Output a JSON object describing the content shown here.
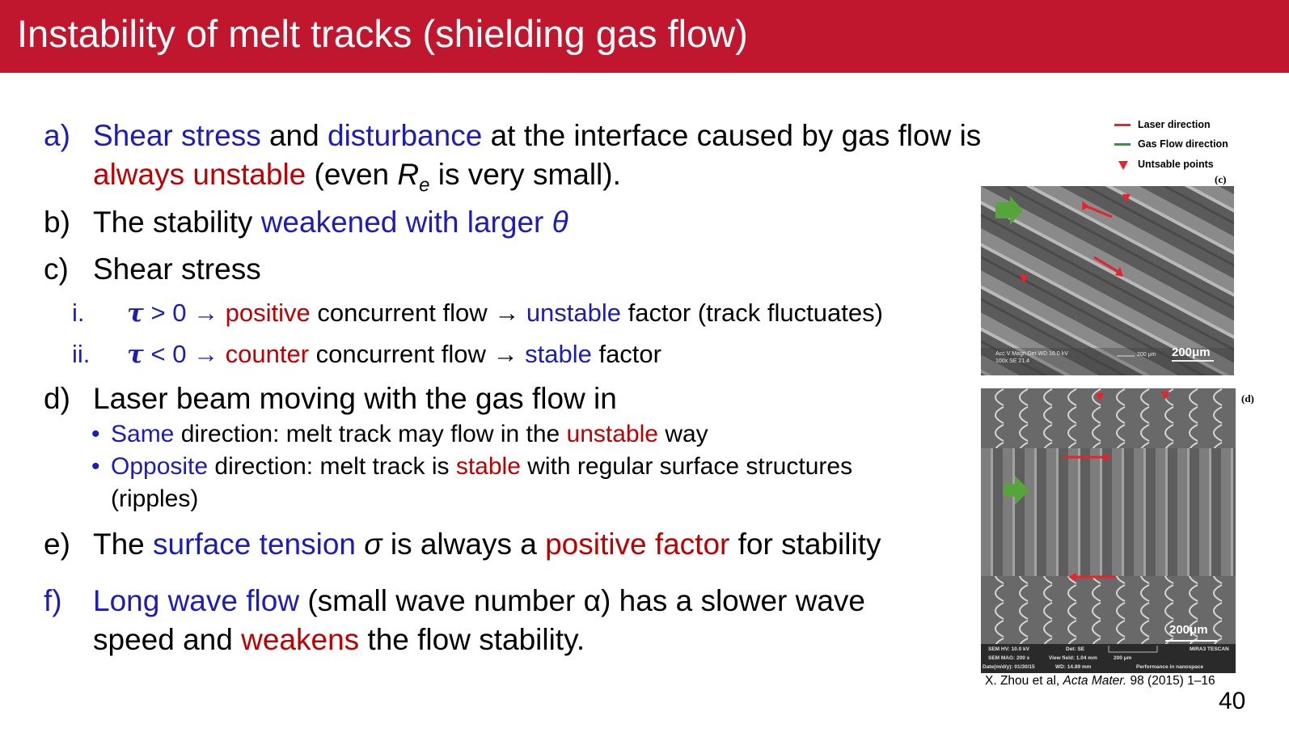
{
  "slide": {
    "title": "Instability of melt tracks (shielding gas flow)",
    "page_number": "40",
    "colors": {
      "title_bar": "#c0172f",
      "blue": "#1c1cb8",
      "red": "#c00000"
    }
  },
  "items": {
    "a": {
      "marker": "a)",
      "t1": "Shear stress",
      "t2": " and ",
      "t3": "disturbance",
      "t4": " at the interface caused by gas flow is",
      "t5": "always unstable",
      "t6": " (even ",
      "t7": "R",
      "t8": "e",
      "t9": " is very small)."
    },
    "b": {
      "marker": "b)",
      "t1": "The stability ",
      "t2": "weakened with larger ",
      "t3": "θ"
    },
    "c": {
      "marker": "c)",
      "t1": "Shear stress",
      "sub1": {
        "marker": "i.",
        "tau": "τ",
        "t1": " > 0 → ",
        "t2": "positive",
        "t3": " concurrent flow → ",
        "t4": "unstable",
        "t5": " factor (track fluctuates)"
      },
      "sub2": {
        "marker": "ii.",
        "tau": "τ",
        "t1": " < 0 → ",
        "t2": "counter",
        "t3": " concurrent flow → ",
        "t4": "stable",
        "t5": " factor"
      }
    },
    "d": {
      "marker": "d)",
      "t1": "Laser beam moving with the gas flow in",
      "b1": {
        "marker": "•",
        "t1": "Same",
        "t2": " direction: melt track may flow in the ",
        "t3": "unstable",
        "t4": " way"
      },
      "b2": {
        "marker": "•",
        "t1": "Opposite",
        "t2": " direction: melt track is ",
        "t3": "stable",
        "t4": " with regular surface structures",
        "t5": "(ripples)"
      }
    },
    "e": {
      "marker": "e)",
      "t1": "The ",
      "t2": "surface tension ",
      "t3": "σ",
      "t4": " is always a ",
      "t5": "positive factor",
      "t6": " for stability"
    },
    "f": {
      "marker": "f)",
      "t1": "Long wave flow",
      "t2": " (small wave number α) has a slower wave",
      "t3": "speed and ",
      "t4": "weakens",
      "t5": " the flow stability."
    }
  },
  "figure": {
    "legend": [
      {
        "label": "Laser direction",
        "color": "#e8232a"
      },
      {
        "label": "Gas Flow direction",
        "color": "#1ca33a"
      },
      {
        "label": "Untsable points",
        "color": "#e8232a",
        "marker": "triangle-down"
      }
    ],
    "panel_c": {
      "label": "(c)",
      "scale": "200μm",
      "meta": "Acc.V Magn Det WD 16.0 kV 100x SE 21.4",
      "meta_scale": "200 μm"
    },
    "panel_d": {
      "label": "(d)",
      "scale": "200μm",
      "meta": {
        "c1a": "SEM HV: 10.0 kV",
        "c1b": "SEM MAG: 200 x",
        "c1c": "Date(m/d/y): 01/30/15",
        "c2a": "Det: SE",
        "c2b": "View field: 1.04 mm",
        "c2c": "WD: 14.89 mm",
        "c3b": "200 μm",
        "c4a": "MIRA3 TESCAN",
        "c4c": "Performance in nanospace"
      }
    }
  },
  "citation": {
    "t1": "X. Zhou et al, ",
    "t2": "Acta Mater.",
    "t3": " 98 (2015) 1–16"
  }
}
